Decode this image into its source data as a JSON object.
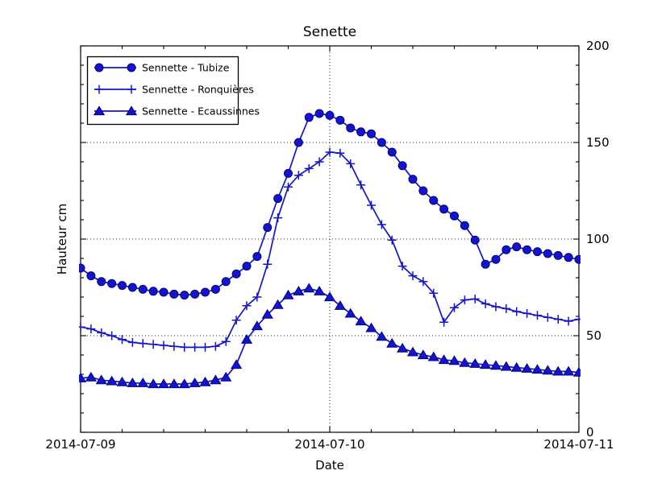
{
  "chart_data": {
    "type": "line",
    "title": "Senette",
    "xlabel": "Date",
    "ylabel": "Hauteur cm",
    "x_tick_labels": [
      "2014-07-09",
      "2014-07-10",
      "2014-07-11"
    ],
    "y_ticks": [
      0,
      50,
      100,
      150,
      200
    ],
    "ylim": [
      0,
      200
    ],
    "x_range_hours": 48,
    "x_interval_hours": 1,
    "grid": {
      "style": "dotted",
      "horizontal_at": [
        50,
        100,
        150
      ],
      "vertical_at_label": "2014-07-10"
    },
    "legend": {
      "position": "upper left"
    },
    "colors": {
      "line": "#1414cc",
      "marker_fill": "#1414cc",
      "marker_edge": "#000088",
      "axis": "#000000",
      "grid": "#222222",
      "background": "#ffffff"
    },
    "series": [
      {
        "name": "Sennette - Tubize",
        "marker": "circle",
        "values": [
          85,
          81,
          78,
          77,
          76,
          75,
          74,
          73,
          72.5,
          71.5,
          71,
          71.5,
          72.5,
          74,
          78,
          82,
          86,
          91,
          106,
          121,
          134,
          150,
          163,
          165,
          164,
          161.5,
          157.5,
          155.5,
          154.5,
          150,
          145,
          138,
          131,
          125,
          120,
          115.5,
          112,
          107,
          99.5,
          87,
          89.5,
          94.5,
          96,
          94.5,
          93.5,
          92.5,
          91.5,
          90.5,
          89.5
        ]
      },
      {
        "name": "Sennette - Ronquières",
        "marker": "plus",
        "values": [
          54.5,
          53.5,
          51.5,
          50,
          48,
          46.5,
          46,
          45.5,
          45,
          44.5,
          44,
          44,
          44,
          44.5,
          47,
          58,
          65.5,
          70,
          87,
          111,
          127,
          133,
          136.5,
          140,
          145,
          144.5,
          139,
          128,
          117.5,
          107.5,
          99.5,
          86,
          81,
          78,
          72,
          57,
          64.5,
          68.5,
          69,
          66.5,
          65,
          64,
          62.5,
          61.5,
          60.5,
          59.5,
          58.5,
          57.5,
          58.5
        ]
      },
      {
        "name": "Sennette - Ecaussinnes",
        "marker": "triangle",
        "values": [
          28,
          28.5,
          27,
          26.5,
          26,
          25.5,
          25.5,
          25,
          25,
          25,
          25,
          25.5,
          26,
          27,
          28.5,
          35,
          48,
          55,
          61,
          66,
          71,
          73,
          74.5,
          73,
          70,
          65.5,
          61.5,
          57.5,
          54,
          49.5,
          46,
          43.5,
          41.5,
          40,
          39,
          37.5,
          37,
          36,
          35.5,
          35,
          34.5,
          34,
          33.5,
          33,
          32.5,
          32,
          31.5,
          31.5,
          31
        ]
      }
    ]
  }
}
